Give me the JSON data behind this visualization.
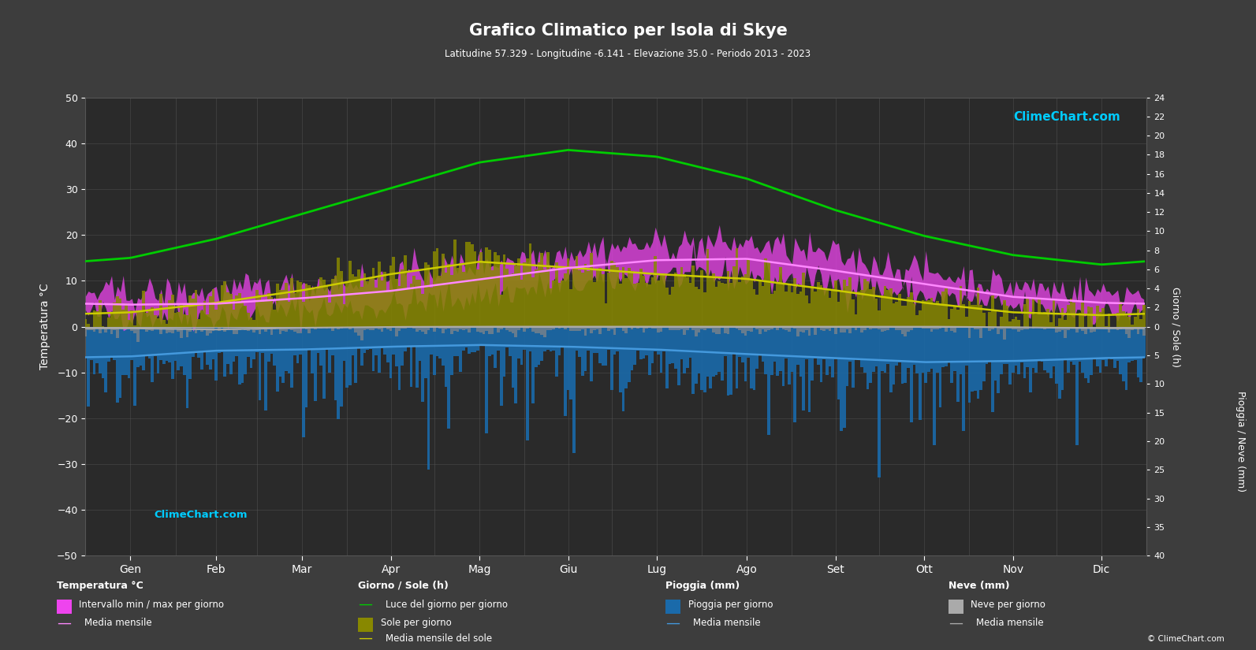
{
  "title": "Grafico Climatico per Isola di Skye",
  "subtitle": "Latitudine 57.329 - Longitudine -6.141 - Elevazione 35.0 - Periodo 2013 - 2023",
  "bg_color": "#3d3d3d",
  "plot_bg_color": "#2a2a2a",
  "text_color": "#ffffff",
  "grid_color": "#555555",
  "months": [
    "Gen",
    "Feb",
    "Mar",
    "Apr",
    "Mag",
    "Giu",
    "Lug",
    "Ago",
    "Set",
    "Ott",
    "Nov",
    "Dic"
  ],
  "days_per_month": [
    31,
    28,
    31,
    30,
    31,
    30,
    31,
    31,
    30,
    31,
    30,
    31
  ],
  "temp_min_monthly": [
    2.5,
    2.5,
    3.5,
    4.5,
    6.8,
    9.2,
    11.0,
    11.2,
    9.2,
    6.8,
    4.2,
    3.0
  ],
  "temp_max_monthly": [
    7.2,
    7.5,
    9.0,
    11.0,
    13.8,
    16.5,
    18.0,
    18.2,
    15.5,
    12.0,
    8.8,
    7.5
  ],
  "temp_mean_monthly": [
    4.8,
    5.0,
    6.2,
    7.8,
    10.3,
    12.8,
    14.5,
    14.8,
    12.2,
    9.3,
    6.5,
    5.2
  ],
  "daylight_monthly": [
    7.2,
    9.2,
    11.8,
    14.5,
    17.2,
    18.5,
    17.8,
    15.5,
    12.2,
    9.5,
    7.5,
    6.5
  ],
  "sunshine_monthly": [
    1.5,
    2.5,
    3.8,
    5.5,
    6.8,
    6.2,
    5.5,
    5.0,
    3.8,
    2.5,
    1.5,
    1.2
  ],
  "rain_daily_mean": [
    5.2,
    4.2,
    4.0,
    3.5,
    3.2,
    3.5,
    4.0,
    4.8,
    5.5,
    6.2,
    6.0,
    5.5
  ],
  "snow_daily_mean": [
    0.3,
    0.5,
    0.2,
    0.05,
    0.0,
    0.0,
    0.0,
    0.0,
    0.0,
    0.0,
    0.1,
    0.3
  ],
  "temp_min_daily_noise": 1.8,
  "temp_max_daily_noise": 1.8,
  "rain_noise_scale": 3.5,
  "snow_noise_scale": 0.8,
  "sunshine_noise_scale": 1.2,
  "logo_text": "ClimeChart.com",
  "copyright_text": "© ClimeChart.com",
  "temp_color": "#ee44ee",
  "temp_mean_color": "#ff88ff",
  "daylight_color": "#00cc00",
  "sunshine_bar_color": "#888800",
  "sunshine_mean_color": "#cccc00",
  "rain_bar_color": "#1a6aaa",
  "rain_mean_color": "#4499dd",
  "snow_bar_color": "#888888",
  "snow_mean_color": "#aaaaaa",
  "logo_color_top": "#00ccff",
  "logo_color_bottom": "#00ccff"
}
